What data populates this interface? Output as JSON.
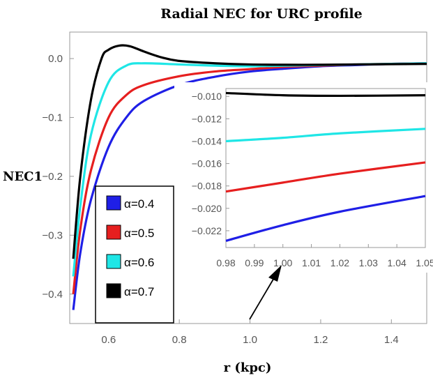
{
  "chart_data": {
    "type": "line",
    "title": "Radial NEC for URC profile",
    "xlabel": "r (kpc)",
    "ylabel": "NEC1",
    "xlim": [
      0.49,
      1.5
    ],
    "ylim": [
      -0.45,
      0.045
    ],
    "xticks": [
      0.6,
      0.8,
      1.0,
      1.2,
      1.4
    ],
    "xtick_labels": [
      "0.6",
      "0.8",
      "1.0",
      "1.2",
      "1.4"
    ],
    "yticks": [
      0.0,
      -0.1,
      -0.2,
      -0.3,
      -0.4
    ],
    "ytick_labels": [
      "0.0",
      "−0.1",
      "−0.2",
      "−0.3",
      "−0.4"
    ],
    "legend_position": "bottom-left",
    "grid": false,
    "series": [
      {
        "name": "α=0.4",
        "color": "#1f1fe6",
        "x": [
          0.5,
          0.52,
          0.55,
          0.6,
          0.65,
          0.7,
          0.8,
          0.9,
          1.0,
          1.1,
          1.2,
          1.3,
          1.4,
          1.5
        ],
        "y": [
          -0.427,
          -0.33,
          -0.24,
          -0.15,
          -0.1,
          -0.072,
          -0.045,
          -0.031,
          -0.022,
          -0.017,
          -0.013,
          -0.011,
          -0.009,
          -0.008
        ]
      },
      {
        "name": "α=0.5",
        "color": "#e61f1f",
        "x": [
          0.5,
          0.52,
          0.55,
          0.6,
          0.65,
          0.7,
          0.8,
          0.9,
          1.0,
          1.1,
          1.2,
          1.3,
          1.4,
          1.5
        ],
        "y": [
          -0.4,
          -0.29,
          -0.19,
          -0.1,
          -0.062,
          -0.045,
          -0.03,
          -0.022,
          -0.018,
          -0.014,
          -0.012,
          -0.01,
          -0.009,
          -0.008
        ]
      },
      {
        "name": "α=0.6",
        "color": "#1fe6e6",
        "x": [
          0.5,
          0.52,
          0.55,
          0.6,
          0.65,
          0.7,
          0.8,
          0.9,
          1.0,
          1.1,
          1.2,
          1.3,
          1.4,
          1.5
        ],
        "y": [
          -0.37,
          -0.25,
          -0.13,
          -0.04,
          -0.012,
          -0.008,
          -0.01,
          -0.012,
          -0.013,
          -0.012,
          -0.011,
          -0.01,
          -0.009,
          -0.008
        ]
      },
      {
        "name": "α=0.7",
        "color": "#000000",
        "x": [
          0.5,
          0.52,
          0.55,
          0.58,
          0.6,
          0.63,
          0.66,
          0.7,
          0.75,
          0.8,
          0.9,
          1.0,
          1.1,
          1.2,
          1.3,
          1.4,
          1.5
        ],
        "y": [
          -0.34,
          -0.2,
          -0.07,
          0.0,
          0.015,
          0.022,
          0.021,
          0.012,
          0.002,
          -0.004,
          -0.008,
          -0.01,
          -0.0105,
          -0.0105,
          -0.01,
          -0.0095,
          -0.009
        ]
      }
    ],
    "inset": {
      "xlim": [
        0.98,
        1.05
      ],
      "ylim": [
        -0.0235,
        -0.0093
      ],
      "xticks": [
        0.98,
        0.99,
        1.0,
        1.01,
        1.02,
        1.03,
        1.04,
        1.05
      ],
      "xtick_labels": [
        "0.98",
        "0.99",
        "1.00",
        "1.01",
        "1.02",
        "1.03",
        "1.04",
        "1.05"
      ],
      "yticks": [
        -0.01,
        -0.012,
        -0.014,
        -0.016,
        -0.018,
        -0.02,
        -0.022
      ],
      "ytick_labels": [
        "−0.010",
        "−0.012",
        "−0.014",
        "−0.016",
        "−0.018",
        "−0.020",
        "−0.022"
      ],
      "series": [
        {
          "color": "#1f1fe6",
          "x": [
            0.98,
            1.0,
            1.02,
            1.05
          ],
          "y": [
            -0.0229,
            -0.0215,
            -0.0203,
            -0.0189
          ]
        },
        {
          "color": "#e61f1f",
          "x": [
            0.98,
            1.0,
            1.02,
            1.05
          ],
          "y": [
            -0.0185,
            -0.0177,
            -0.0169,
            -0.0159
          ]
        },
        {
          "color": "#1fe6e6",
          "x": [
            0.98,
            1.0,
            1.02,
            1.05
          ],
          "y": [
            -0.014,
            -0.0137,
            -0.0133,
            -0.0129
          ]
        },
        {
          "color": "#000000",
          "x": [
            0.98,
            1.0,
            1.02,
            1.05
          ],
          "y": [
            -0.0097,
            -0.0099,
            -0.00995,
            -0.0099
          ]
        }
      ]
    }
  }
}
